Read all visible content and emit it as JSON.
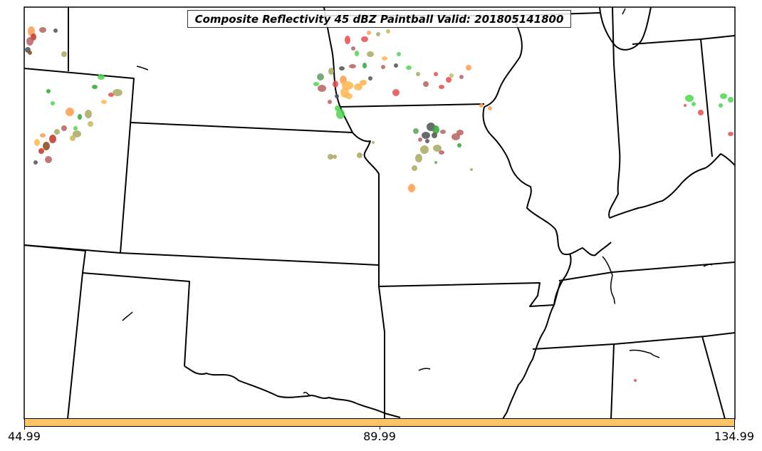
{
  "title": "Composite Reflectivity 45 dBZ Paintball Valid: 201805141800",
  "colorbar": {
    "color": "#FFC466",
    "ticks": [
      "44.99",
      "89.99",
      "134.99"
    ]
  },
  "map": {
    "background": "#ffffff",
    "border_color": "#000000",
    "paintball_palette": [
      "#E84C4C",
      "#FF9C4C",
      "#FFB64C",
      "#4CD64C",
      "#2EA82E",
      "#5F9E5F",
      "#B76060",
      "#A8A860",
      "#C8B85C",
      "#505050",
      "#C83020",
      "#8B4513"
    ]
  }
}
